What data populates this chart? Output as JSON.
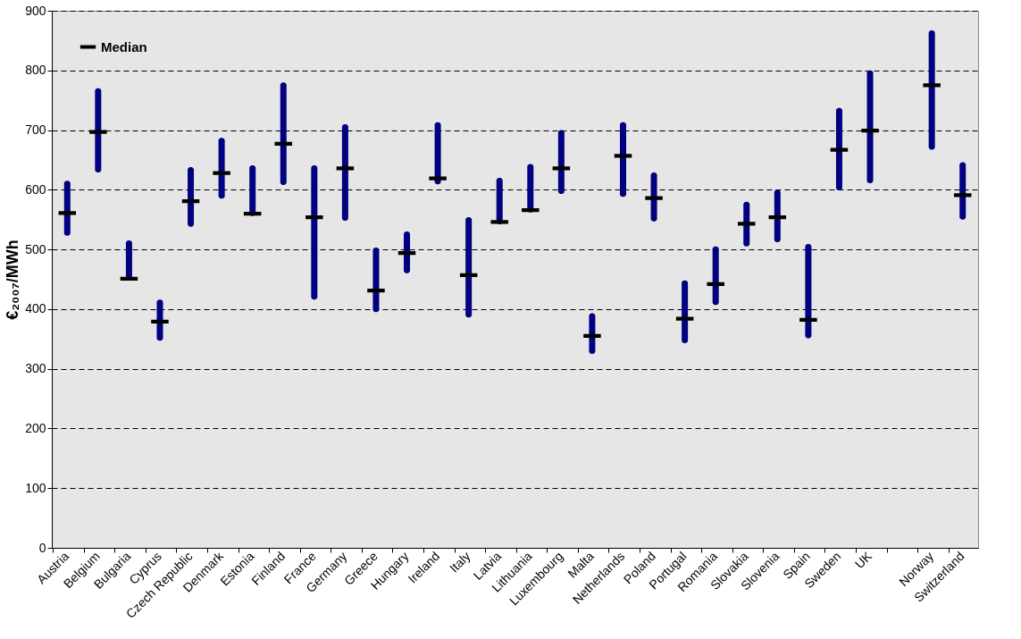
{
  "chart_data": {
    "type": "bar",
    "ylabel": "€₂₀₀₇/MWh",
    "categories": [
      "Austria",
      "Belgium",
      "Bulgaria",
      "Cyprus",
      "Czech Republic",
      "Denmark",
      "Estonia",
      "Finland",
      "France",
      "Germany",
      "Greece",
      "Hungary",
      "Ireland",
      "Italy",
      "Latvia",
      "Lithuania",
      "Luxembourg",
      "Malta",
      "Netherlands",
      "Poland",
      "Portugal",
      "Romania",
      "Slovakia",
      "Slovenia",
      "Spain",
      "Sweden",
      "UK",
      null,
      "Norway",
      "Switzerland"
    ],
    "series": [
      {
        "type": "bar",
        "color": "#000080",
        "base": [
          523,
          629,
          450,
          347,
          538,
          585,
          556,
          608,
          416,
          548,
          395,
          460,
          609,
          386,
          542,
          562,
          593,
          325,
          588,
          547,
          343,
          407,
          505,
          512,
          351,
          599,
          611,
          null,
          667,
          550
        ],
        "values": [
          92,
          141,
          65,
          69,
          100,
          102,
          85,
          172,
          225,
          162,
          108,
          70,
          104,
          168,
          78,
          81,
          107,
          68,
          125,
          82,
          105,
          98,
          75,
          88,
          158,
          138,
          189,
          null,
          200,
          96
        ]
      },
      {
        "type": "scatter",
        "name": "Median",
        "color": "#000000",
        "values": [
          561,
          697,
          451,
          379,
          581,
          628,
          560,
          677,
          554,
          636,
          431,
          494,
          619,
          457,
          546,
          566,
          636,
          355,
          657,
          586,
          384,
          442,
          543,
          554,
          382,
          667,
          699,
          null,
          775,
          591
        ]
      }
    ],
    "ylim": [
      0,
      900
    ],
    "yticks": [
      0,
      100,
      200,
      300,
      400,
      500,
      600,
      700,
      800,
      900
    ],
    "grid": "y",
    "line_style": "dashed",
    "legend": "top left"
  }
}
